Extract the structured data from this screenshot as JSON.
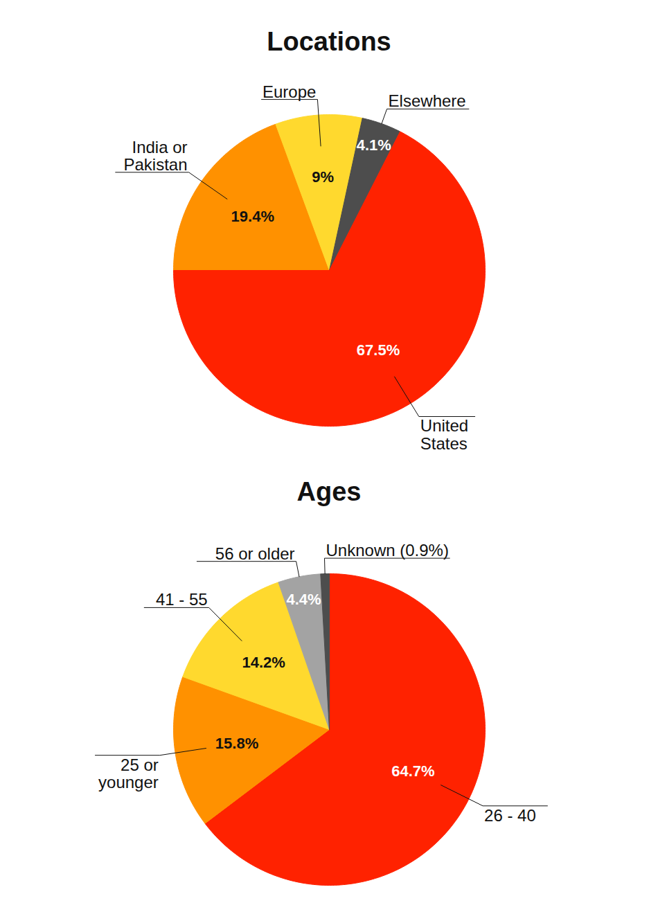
{
  "chart_data": [
    {
      "type": "pie",
      "title": "Locations",
      "categories": [
        "India or\nPakistan",
        "Europe",
        "Elsewhere",
        "United\nStates"
      ],
      "values": [
        19.4,
        9,
        4.1,
        67.5
      ],
      "value_labels": [
        "19.4%",
        "9%",
        "4.1%",
        "67.5%"
      ],
      "colors": [
        "#ff9100",
        "#ffd92e",
        "#4d4d4d",
        "#ff2200"
      ],
      "data_labels": true
    },
    {
      "type": "pie",
      "title": "Ages",
      "categories": [
        "26 - 40",
        "25 or\nyounger",
        "41 - 55",
        "56 or older",
        "Unknown (0.9%)"
      ],
      "values": [
        64.7,
        15.8,
        14.2,
        4.4,
        0.9
      ],
      "value_labels": [
        "64.7%",
        "15.8%",
        "14.2%",
        "4.4%",
        null
      ],
      "colors": [
        "#ff2200",
        "#ff9100",
        "#ffd92e",
        "#a3a3a3",
        "#4d4d4d"
      ],
      "data_labels": true
    }
  ]
}
